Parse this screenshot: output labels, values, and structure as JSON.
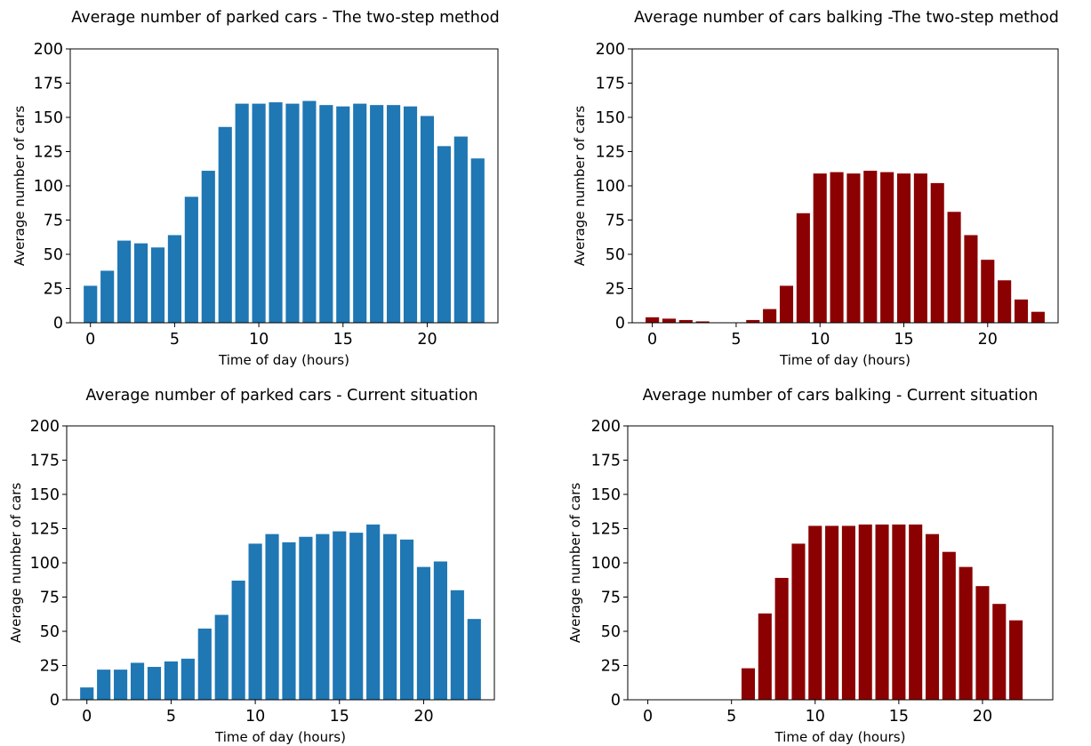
{
  "chart_data": [
    {
      "id": "parked_two_step",
      "type": "bar",
      "title": "Average number of parked cars - The two-step method",
      "xlabel": "Time of day (hours)",
      "ylabel": "Average number of cars",
      "ylim": [
        0,
        200
      ],
      "xlim": [
        -1.2,
        24.2
      ],
      "xticks": [
        0,
        5,
        10,
        15,
        20
      ],
      "yticks": [
        0,
        25,
        50,
        75,
        100,
        125,
        150,
        175,
        200
      ],
      "color": "#1f77b4",
      "grid": false,
      "x": [
        0,
        1,
        2,
        3,
        4,
        5,
        6,
        7,
        8,
        9,
        10,
        11,
        12,
        13,
        14,
        15,
        16,
        17,
        18,
        19,
        20,
        21,
        22,
        23
      ],
      "values": [
        27,
        38,
        60,
        58,
        55,
        64,
        92,
        111,
        143,
        160,
        160,
        161,
        160,
        162,
        159,
        158,
        160,
        159,
        159,
        158,
        151,
        129,
        136,
        120
      ]
    },
    {
      "id": "balking_two_step",
      "type": "bar",
      "title": "Average number of cars balking -The two-step method",
      "xlabel": "Time of day (hours)",
      "ylabel": "Average number of cars",
      "ylim": [
        0,
        200
      ],
      "xlim": [
        -1.2,
        24.2
      ],
      "xticks": [
        0,
        5,
        10,
        15,
        20
      ],
      "yticks": [
        0,
        25,
        50,
        75,
        100,
        125,
        150,
        175,
        200
      ],
      "color": "#8b0000",
      "grid": false,
      "x": [
        0,
        1,
        2,
        3,
        4,
        5,
        6,
        7,
        8,
        9,
        10,
        11,
        12,
        13,
        14,
        15,
        16,
        17,
        18,
        19,
        20,
        21,
        22,
        23
      ],
      "values": [
        4,
        3,
        2,
        1,
        0,
        0,
        2,
        10,
        27,
        80,
        109,
        110,
        109,
        111,
        110,
        109,
        109,
        102,
        81,
        64,
        46,
        31,
        17,
        8
      ]
    },
    {
      "id": "parked_current",
      "type": "bar",
      "title": "Average number of parked cars - Current situation",
      "xlabel": "Time of day (hours)",
      "ylabel": "Average number of cars",
      "ylim": [
        0,
        200
      ],
      "xlim": [
        -1.2,
        24.2
      ],
      "xticks": [
        0,
        5,
        10,
        15,
        20
      ],
      "yticks": [
        0,
        25,
        50,
        75,
        100,
        125,
        150,
        175,
        200
      ],
      "color": "#1f77b4",
      "grid": false,
      "x": [
        0,
        1,
        2,
        3,
        4,
        5,
        6,
        7,
        8,
        9,
        10,
        11,
        12,
        13,
        14,
        15,
        16,
        17,
        18,
        19,
        20,
        21,
        22,
        23
      ],
      "values": [
        9,
        22,
        22,
        27,
        24,
        28,
        30,
        52,
        62,
        87,
        114,
        121,
        115,
        119,
        121,
        123,
        122,
        128,
        121,
        117,
        97,
        101,
        80,
        59
      ]
    },
    {
      "id": "balking_current",
      "type": "bar",
      "title": "Average number of cars balking - Current situation",
      "xlabel": "Time of day (hours)",
      "ylabel": "Average number of cars",
      "ylim": [
        0,
        200
      ],
      "xlim": [
        -1.2,
        24.2
      ],
      "xticks": [
        0,
        5,
        10,
        15,
        20
      ],
      "yticks": [
        0,
        25,
        50,
        75,
        100,
        125,
        150,
        175,
        200
      ],
      "color": "#8b0000",
      "grid": false,
      "x": [
        0,
        1,
        2,
        3,
        4,
        5,
        6,
        7,
        8,
        9,
        10,
        11,
        12,
        13,
        14,
        15,
        16,
        17,
        18,
        19,
        20,
        21,
        22
      ],
      "values": [
        0,
        0,
        0,
        0,
        0,
        0,
        23,
        63,
        89,
        114,
        127,
        127,
        127,
        128,
        128,
        128,
        128,
        121,
        108,
        97,
        83,
        70,
        58
      ]
    }
  ]
}
